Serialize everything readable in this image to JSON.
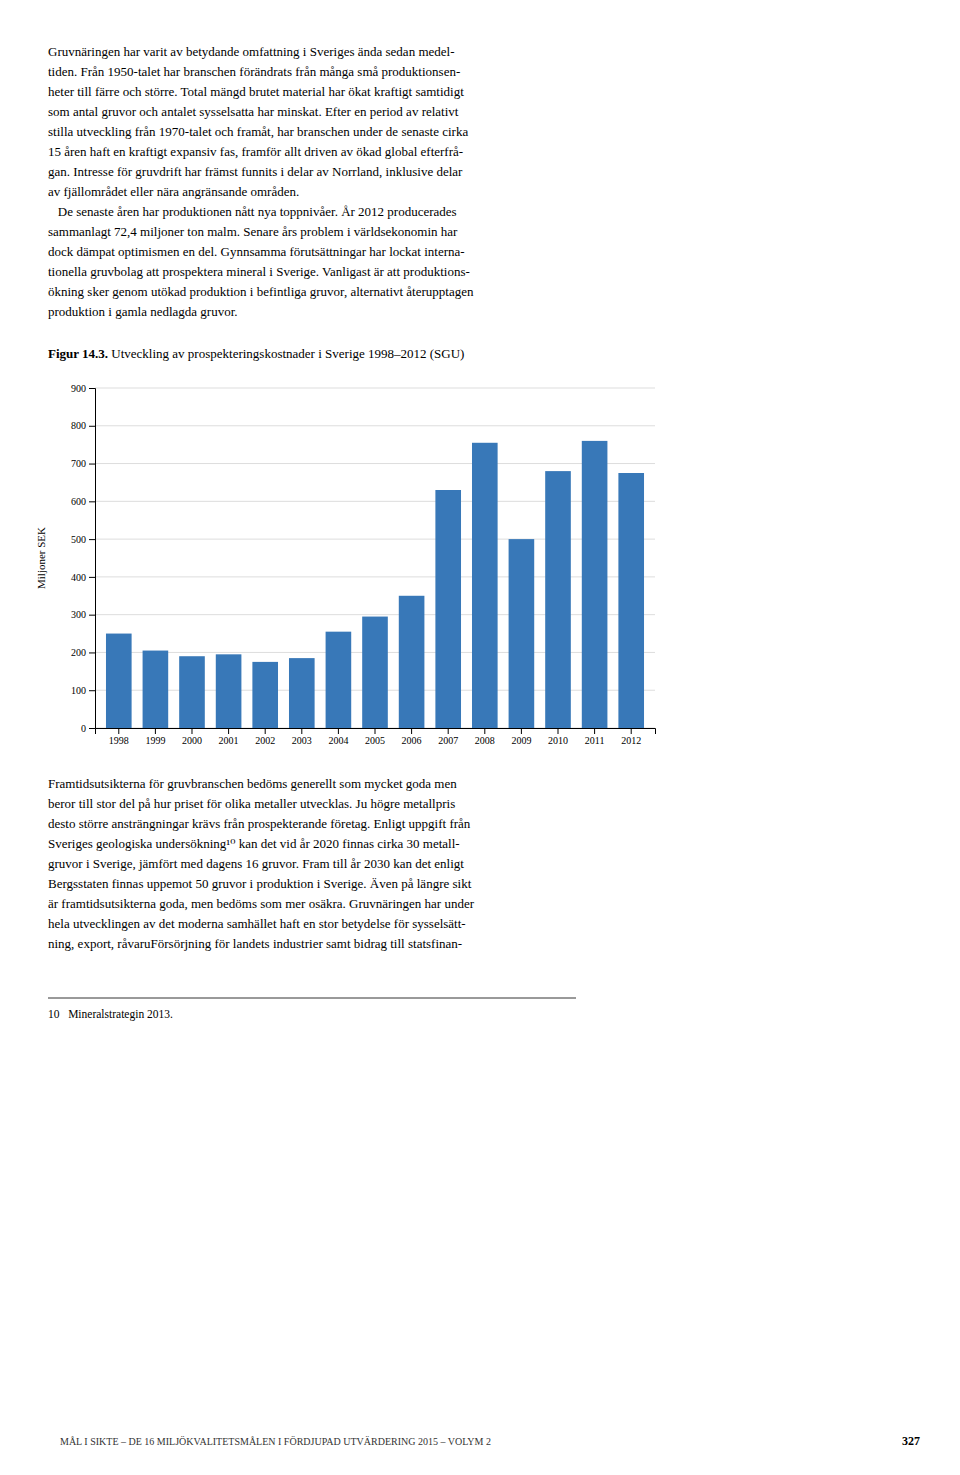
{
  "page_text": [
    "Gruvnäringen har varit av betydande omfattning i Sveriges ända sedan medel-",
    "tiden. Från 1950-talet har branschen förändrats från många små produktionsen-",
    "heter till färre och större. Total mängd brutet material har ökat kraftigt samtidigt",
    "som antal gruvor och antalet sysselsatta har minskat. Efter en period av relativt",
    "stilla utveckling från 1970-talet och framåt, har branschen under de senaste cirka",
    "15 åren haft en kraftigt expansiv fas, framför allt driven av ökad global efterfrå-",
    "gan. Intresse för gruvdrift har främst funnits i delar av Norrland, inklusive delar",
    "av fjällområdet eller nära angränsande områden.",
    "   De senaste åren har produktionen nått nya toppnivåer. År 2012 producerades",
    "sammanlagt 72,4 miljoner ton malm. Senare års problem i världsekonomin har",
    "dock dämpat optimismen en del. Gynnsamma förutsättningar har lockat interna-",
    "tionella gruvbolag att prospektera mineral i Sverige. Vanligast är att produktions-",
    "ökning sker genom utökad produktion i befintliga gruvor, alternativt återupptagen",
    "produktion i gamla nedlagda gruvor."
  ],
  "figure_caption": {
    "label": "Figur 14.3.",
    "text": " Utveckling av prospekteringskostnader i Sverige 1998–2012 (SGU)"
  },
  "chart_data": {
    "type": "bar",
    "categories": [
      "1998",
      "1999",
      "2000",
      "2001",
      "2002",
      "2003",
      "2004",
      "2005",
      "2006",
      "2007",
      "2008",
      "2009",
      "2010",
      "2011",
      "2012"
    ],
    "values": [
      250,
      205,
      190,
      195,
      175,
      185,
      255,
      295,
      350,
      630,
      755,
      500,
      680,
      760,
      675
    ],
    "color": "#3878b8",
    "ylabel": "Miljoner SEK",
    "ylim": [
      0,
      900
    ],
    "yticks": [
      0,
      100,
      200,
      300,
      400,
      500,
      600,
      700,
      800,
      900
    ],
    "grid": true
  },
  "bottom_text": [
    "Framtidsutsikterna för gruvbranschen bedöms generellt som mycket goda men",
    "beror till stor del på hur priset för olika metaller utvecklas. Ju högre metallpris",
    "desto större ansträngningar krävs från prospekterande företag. Enligt uppgift från",
    "Sveriges geologiska undersökning¹⁰ kan det vid år 2020 finnas cirka 30 metall-",
    "gruvor i Sverige, jämfört med dagens 16 gruvor. Fram till år 2030 kan det enligt",
    "Bergsstaten finnas uppemot 50 gruvor i produktion i Sverige. Även på längre sikt",
    "är framtidsutsikterna goda, men bedöms som mer osäkra. Gruvnäringen har under",
    "hela utvecklingen av det moderna samhället haft en stor betydelse för sysselsätt-",
    "ning, export, råvaruFörsörjning för landets industrier samt bidrag till statsfinan-"
  ],
  "footnote": "10   Mineralstrategin 2013.",
  "page_footer": "MÅL I SIKTE – DE 16 MILJÖKVALITETSMÅLEN I FÖRDJUPAD UTVÄRDERING 2015 – VOLYM 2",
  "page_number": "327"
}
